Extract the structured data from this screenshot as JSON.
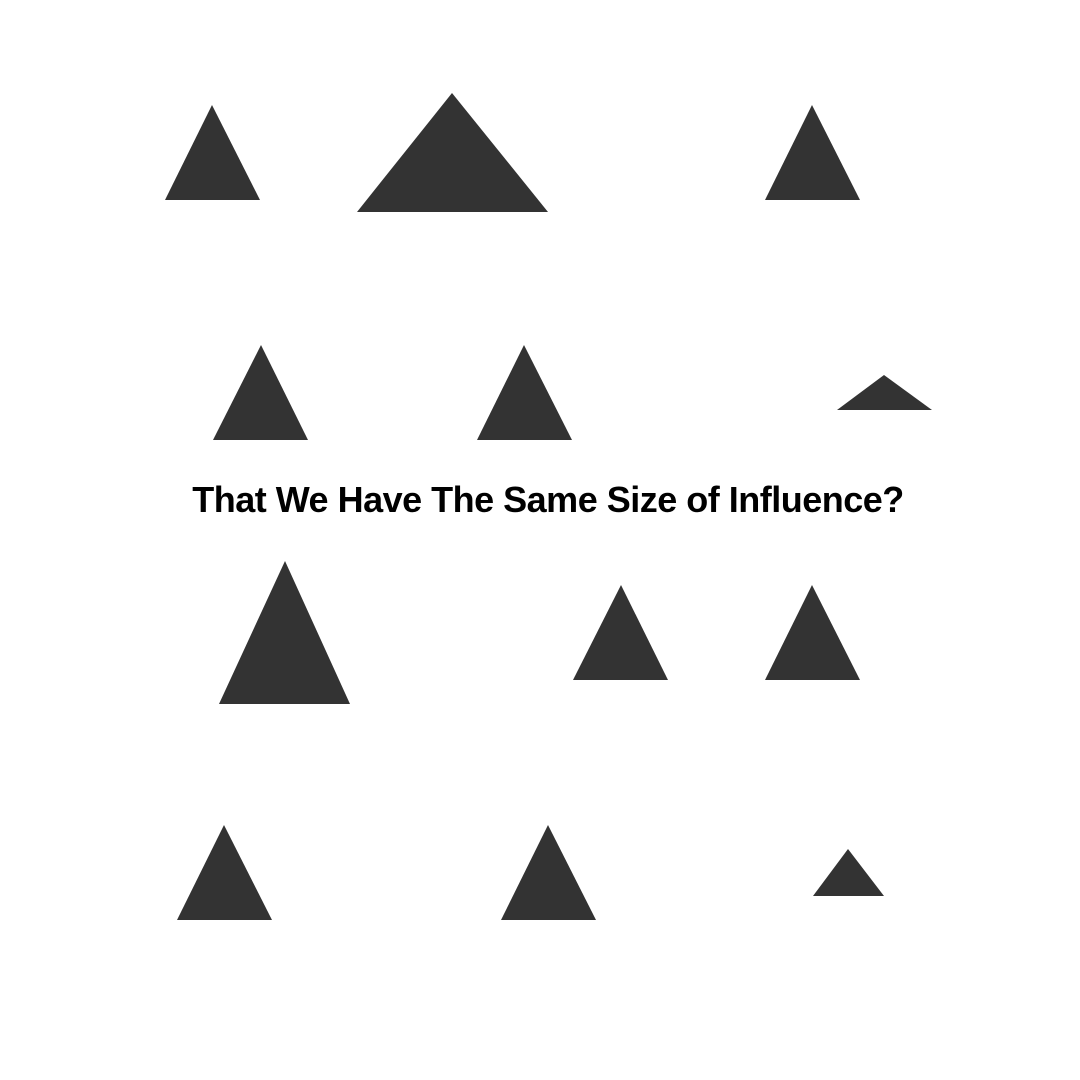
{
  "headline": "That We Have The Same Size of Influence?",
  "colors": {
    "background": "#ffffff",
    "triangle": "#333333",
    "text": "#000000"
  },
  "shapes": {
    "kind": "triangle",
    "count": 12
  }
}
